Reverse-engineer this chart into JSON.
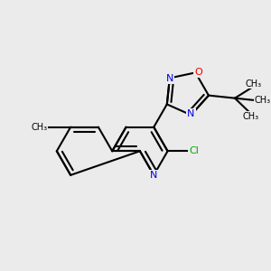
{
  "bg_color": "#ebebeb",
  "bond_color": "#000000",
  "bond_lw": 1.5,
  "atom_colors": {
    "N": "#0000ee",
    "O": "#ee0000",
    "Cl": "#00aa00",
    "C": "#000000"
  },
  "xlim": [
    0,
    10
  ],
  "ylim": [
    0,
    10
  ],
  "figsize": [
    3.0,
    3.0
  ],
  "dpi": 100
}
